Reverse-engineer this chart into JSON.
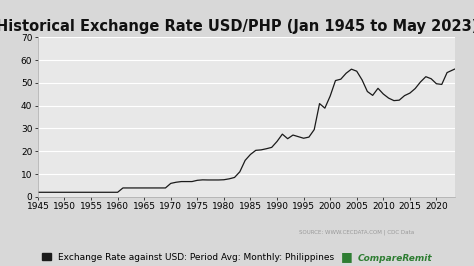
{
  "title": "Historical Exchange Rate USD/PHP (Jan 1945 to May 2023)",
  "title_fontsize": 10.5,
  "bg_color": "#d8d8d8",
  "plot_bg_color": "#e8e8e8",
  "line_color": "#1a1a1a",
  "line_width": 0.9,
  "xlim": [
    1945,
    2023.5
  ],
  "ylim": [
    0,
    70
  ],
  "yticks": [
    0,
    10,
    20,
    30,
    40,
    50,
    60,
    70
  ],
  "xticks": [
    1945,
    1950,
    1955,
    1960,
    1965,
    1970,
    1975,
    1980,
    1985,
    1990,
    1995,
    2000,
    2005,
    2010,
    2015,
    2020
  ],
  "legend_label": "Exchange Rate against USD: Period Avg: Monthly: Philippines",
  "source_text": "SOURCE: WWW.CECDATA.COM | CDC Data",
  "watermark_text": "CompareRemit",
  "grid_color": "#ffffff",
  "tick_fontsize": 6.5,
  "legend_fontsize": 6.5,
  "x_data": [
    1945.0,
    1946.0,
    1947.0,
    1948.0,
    1949.0,
    1950.0,
    1951.0,
    1952.0,
    1953.0,
    1954.0,
    1955.0,
    1956.0,
    1957.0,
    1958.0,
    1959.0,
    1960.0,
    1961.0,
    1962.0,
    1963.0,
    1964.0,
    1965.0,
    1966.0,
    1967.0,
    1968.0,
    1969.0,
    1970.0,
    1971.0,
    1972.0,
    1973.0,
    1974.0,
    1975.0,
    1976.0,
    1977.0,
    1978.0,
    1979.0,
    1980.0,
    1981.0,
    1982.0,
    1983.0,
    1984.0,
    1985.0,
    1986.0,
    1987.0,
    1988.0,
    1989.0,
    1990.0,
    1991.0,
    1992.0,
    1993.0,
    1994.0,
    1995.0,
    1996.0,
    1997.0,
    1998.0,
    1999.0,
    2000.0,
    2001.0,
    2002.0,
    2003.0,
    2004.0,
    2005.0,
    2006.0,
    2007.0,
    2008.0,
    2009.0,
    2010.0,
    2011.0,
    2012.0,
    2013.0,
    2014.0,
    2015.0,
    2016.0,
    2017.0,
    2018.0,
    2019.0,
    2020.0,
    2021.0,
    2022.0,
    2023.4
  ],
  "y_data": [
    2.0,
    2.0,
    2.0,
    2.0,
    2.0,
    2.0,
    2.0,
    2.0,
    2.0,
    2.0,
    2.0,
    2.0,
    2.0,
    2.0,
    2.0,
    2.0,
    3.9,
    3.9,
    3.9,
    3.9,
    3.9,
    3.9,
    3.9,
    3.9,
    3.9,
    5.9,
    6.4,
    6.7,
    6.7,
    6.7,
    7.25,
    7.45,
    7.4,
    7.4,
    7.4,
    7.5,
    7.9,
    8.5,
    11.0,
    16.0,
    18.6,
    20.4,
    20.6,
    21.1,
    21.7,
    24.3,
    27.5,
    25.5,
    27.1,
    26.4,
    25.7,
    26.2,
    29.5,
    40.9,
    38.9,
    44.2,
    51.0,
    51.6,
    54.2,
    56.0,
    55.1,
    51.3,
    46.2,
    44.5,
    47.6,
    45.1,
    43.3,
    42.2,
    42.4,
    44.4,
    45.5,
    47.5,
    50.4,
    52.7,
    51.8,
    49.6,
    49.3,
    54.5,
    56.0
  ]
}
